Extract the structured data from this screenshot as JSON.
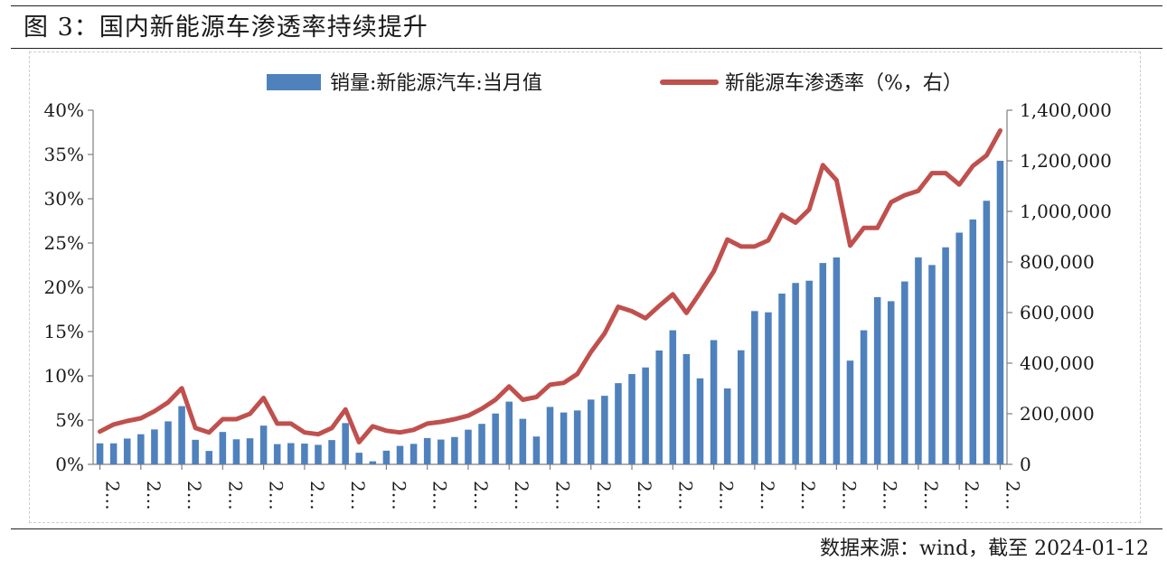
{
  "header": {
    "title": "图 3：国内新能源车渗透率持续提升"
  },
  "footer": {
    "source": "数据来源：wind，截至 2024-01-12"
  },
  "chart_data": {
    "type": "bar+line",
    "title": "图 3：国内新能源车渗透率持续提升",
    "legend_position": "top-center",
    "grid": false,
    "x_tick_label": "2…",
    "x_tick_count": 23,
    "series": [
      {
        "name": "销量:新能源汽车:当月值",
        "type": "bar",
        "axis": "right",
        "color": "#4F81BD",
        "values": [
          83000,
          83000,
          102000,
          119000,
          138000,
          170000,
          230000,
          97000,
          53000,
          128000,
          99000,
          103000,
          153000,
          80000,
          84000,
          82000,
          77000,
          96000,
          163000,
          46000,
          12000,
          54000,
          73000,
          81000,
          104000,
          98000,
          108000,
          137000,
          160000,
          201000,
          248000,
          180000,
          110000,
          227000,
          205000,
          213000,
          256000,
          271000,
          321000,
          357000,
          383000,
          450000,
          530000,
          436000,
          340000,
          491000,
          300000,
          451000,
          606000,
          601000,
          675000,
          717000,
          726000,
          796000,
          818000,
          410000,
          530000,
          661000,
          645000,
          723000,
          818000,
          788000,
          858000,
          916000,
          968000,
          1042000,
          1200000
        ]
      },
      {
        "name": "新能源车渗透率（%，右）",
        "type": "line",
        "axis": "left",
        "color": "#C0504D",
        "values": [
          3.7,
          4.5,
          4.9,
          5.2,
          6.0,
          7.0,
          8.6,
          4.1,
          3.6,
          5.1,
          5.1,
          5.7,
          7.5,
          4.6,
          4.6,
          3.6,
          3.4,
          4.1,
          6.2,
          2.5,
          4.3,
          3.8,
          3.6,
          3.9,
          4.6,
          4.8,
          5.1,
          5.5,
          6.3,
          7.3,
          8.8,
          7.3,
          7.6,
          9.0,
          9.2,
          10.2,
          12.7,
          14.8,
          17.8,
          17.3,
          16.5,
          17.9,
          19.2,
          17.1,
          19.4,
          21.8,
          25.4,
          24.6,
          24.6,
          25.3,
          28.2,
          27.3,
          28.8,
          33.8,
          32.1,
          24.7,
          26.7,
          26.7,
          29.6,
          30.4,
          30.9,
          32.9,
          32.9,
          31.6,
          33.7,
          34.9,
          37.7
        ]
      }
    ],
    "axes": {
      "left": {
        "min": 0,
        "max": 0.4,
        "ticks": [
          "0%",
          "5%",
          "10%",
          "15%",
          "20%",
          "25%",
          "30%",
          "35%",
          "40%"
        ]
      },
      "right": {
        "min": 0,
        "max": 1400000,
        "ticks": [
          "0",
          "200,000",
          "400,000",
          "600,000",
          "800,000",
          "1,000,000",
          "1,200,000",
          "1,400,000"
        ]
      }
    }
  }
}
